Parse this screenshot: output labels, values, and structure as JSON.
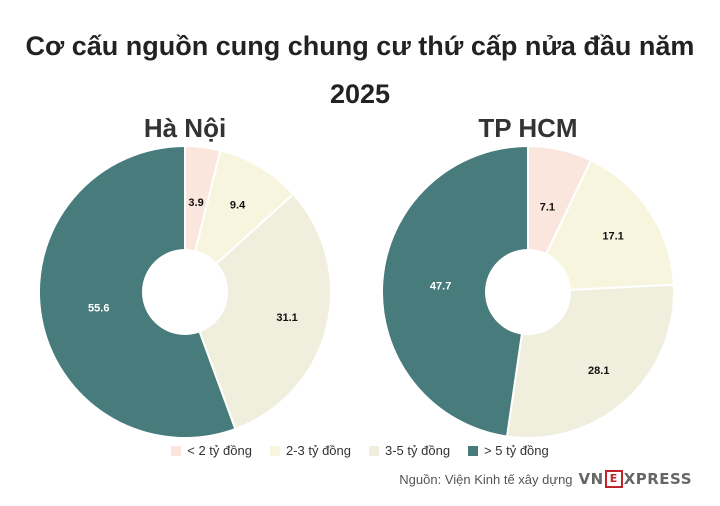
{
  "title_line1": "Cơ cấu nguồn cung chung cư thứ cấp nửa đầu năm",
  "title_line2": "2025",
  "legend": [
    {
      "label": "< 2 tỷ đồng",
      "color": "#fbe6dd"
    },
    {
      "label": "2-3 tỷ đồng",
      "color": "#f8f5de"
    },
    {
      "label": "3-5 tỷ đồng",
      "color": "#f0efde"
    },
    {
      "label": "> 5 tỷ đồng",
      "color": "#477b7c"
    }
  ],
  "source": "Nguồn: Viện Kinh tế xây dựng",
  "logo": {
    "left": "VN",
    "mid": "E",
    "right": "XPRESS"
  },
  "chart_data": [
    {
      "type": "pie",
      "title": "Hà Nội",
      "categories": [
        "< 2 tỷ đồng",
        "2-3 tỷ đồng",
        "3-5 tỷ đồng",
        "> 5 tỷ đồng"
      ],
      "values": [
        3.9,
        9.4,
        31.1,
        55.6
      ],
      "value_labels": [
        "3.9",
        "9.4",
        "31.1",
        "55.6"
      ],
      "colors": [
        "#fbe6dd",
        "#f8f5de",
        "#f0efde",
        "#477b7c"
      ]
    },
    {
      "type": "pie",
      "title": "TP HCM",
      "categories": [
        "< 2 tỷ đồng",
        "2-3 tỷ đồng",
        "3-5 tỷ đồng",
        "> 5 tỷ đồng"
      ],
      "values": [
        7.1,
        17.1,
        28.1,
        47.7
      ],
      "value_labels": [
        "7.1",
        "17.1",
        "28.1",
        "47.7"
      ],
      "colors": [
        "#fbe6dd",
        "#f8f5de",
        "#f0efde",
        "#477b7c"
      ]
    }
  ]
}
